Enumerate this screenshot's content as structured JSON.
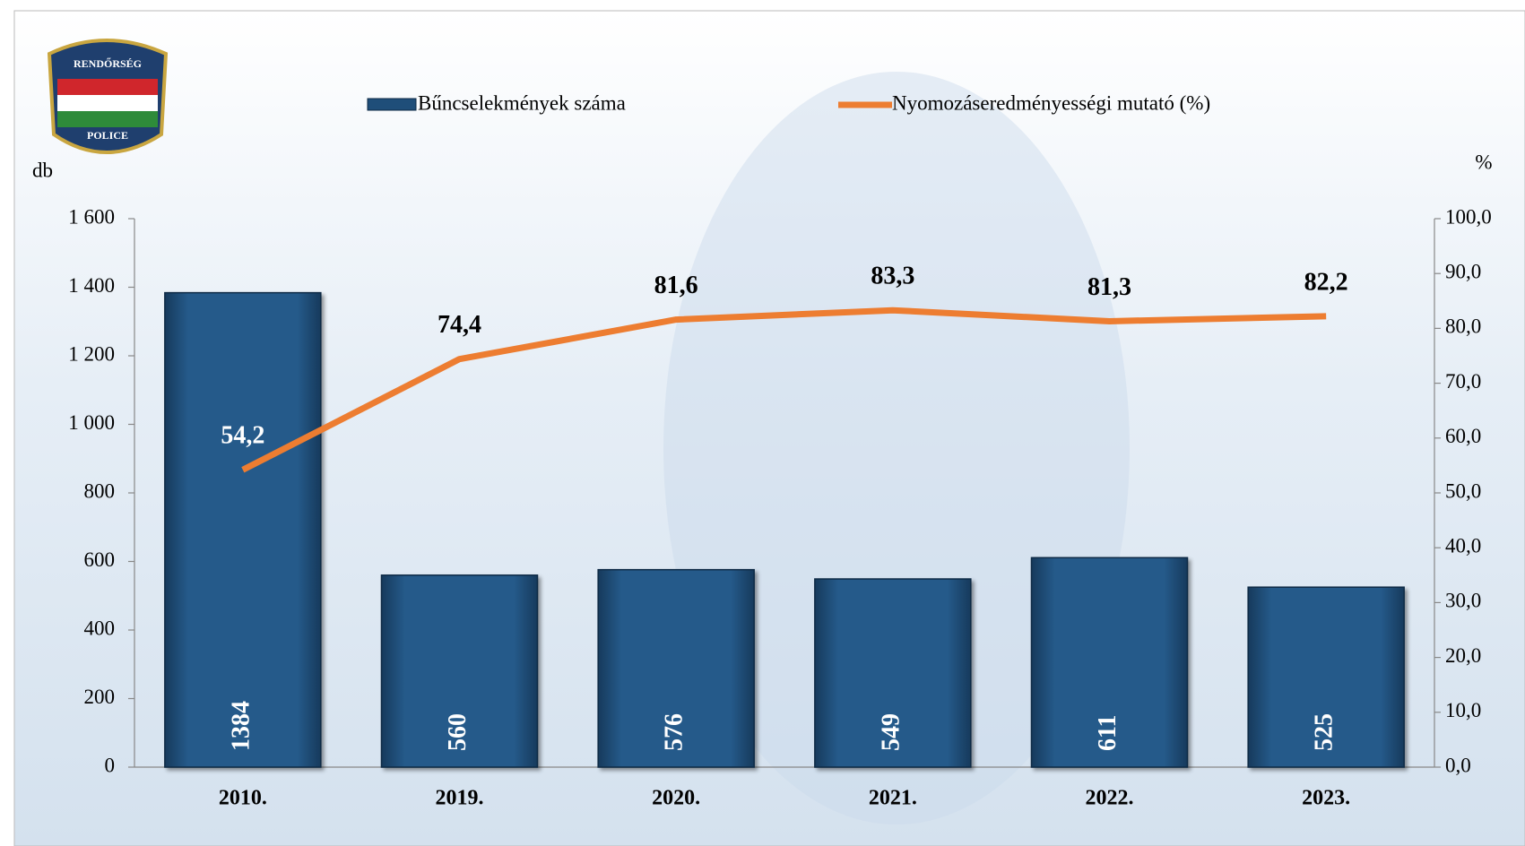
{
  "logo": {
    "top": "RENDŐRSÉG",
    "bottom": "POLICE"
  },
  "chart_data": {
    "type": "bar",
    "y_label": "db",
    "y2_label": "%",
    "categories": [
      "2010.",
      "2019.",
      "2020.",
      "2021.",
      "2022.",
      "2023."
    ],
    "series": [
      {
        "name": "Bűncselekmények száma",
        "color": "#1f4e79",
        "type": "bar",
        "values": [
          1384,
          560,
          576,
          549,
          611,
          525
        ]
      },
      {
        "name": "Nyomozáseredményességi mutató (%)",
        "color": "#ed7d31",
        "type": "line",
        "axis": "y2",
        "values": [
          54.2,
          74.4,
          81.6,
          83.3,
          81.3,
          82.2
        ],
        "value_labels": [
          "54,2",
          "74,4",
          "81,6",
          "83,3",
          "81,3",
          "82,2"
        ]
      }
    ],
    "ylim": [
      0,
      1600
    ],
    "yticks": [
      0,
      {
        "value": 200,
        "label": "200"
      },
      400,
      600,
      800,
      {
        "value": 1000,
        "label": "1 000"
      },
      {
        "value": 1200,
        "label": "1 200"
      },
      {
        "value": 1400,
        "label": "1 400"
      },
      {
        "value": 1600,
        "label": "1 600"
      }
    ],
    "y2lim": [
      0,
      100
    ],
    "y2ticks": [
      {
        "value": 0,
        "label": "0,0"
      },
      {
        "value": 10,
        "label": "10,0"
      },
      {
        "value": 20,
        "label": "20,0"
      },
      {
        "value": 30,
        "label": "30,0"
      },
      {
        "value": 40,
        "label": "40,0"
      },
      {
        "value": 50,
        "label": "50,0"
      },
      {
        "value": 60,
        "label": "60,0"
      },
      {
        "value": 70,
        "label": "70,0"
      },
      {
        "value": 80,
        "label": "80,0"
      },
      {
        "value": 90,
        "label": "90,0"
      },
      {
        "value": 100,
        "label": "100,0"
      }
    ]
  }
}
